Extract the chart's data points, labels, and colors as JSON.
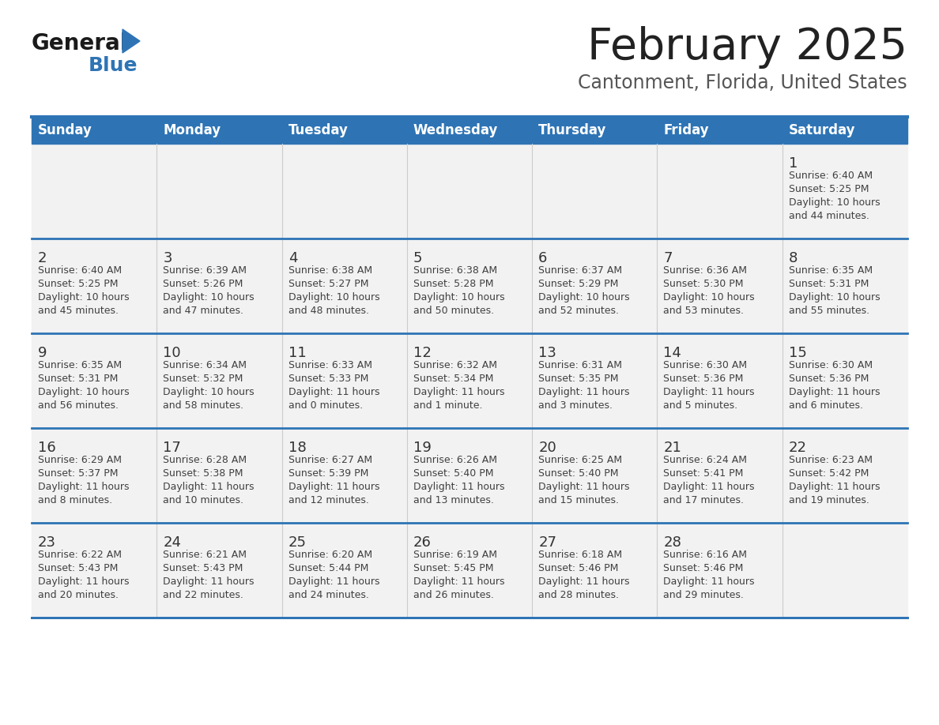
{
  "title": "February 2025",
  "subtitle": "Cantonment, Florida, United States",
  "days_of_week": [
    "Sunday",
    "Monday",
    "Tuesday",
    "Wednesday",
    "Thursday",
    "Friday",
    "Saturday"
  ],
  "header_bg": "#2E74B5",
  "header_text_color": "#FFFFFF",
  "cell_bg": "#F2F2F2",
  "separator_color": "#2E74B5",
  "col_sep_color": "#CCCCCC",
  "text_color": "#404040",
  "day_num_color": "#333333",
  "title_color": "#222222",
  "subtitle_color": "#555555",
  "logo_general_color": "#1a1a1a",
  "logo_blue_color": "#2E74B5",
  "weeks": [
    [
      {
        "day": null,
        "sunrise": null,
        "sunset": null,
        "daylight_line1": null,
        "daylight_line2": null
      },
      {
        "day": null,
        "sunrise": null,
        "sunset": null,
        "daylight_line1": null,
        "daylight_line2": null
      },
      {
        "day": null,
        "sunrise": null,
        "sunset": null,
        "daylight_line1": null,
        "daylight_line2": null
      },
      {
        "day": null,
        "sunrise": null,
        "sunset": null,
        "daylight_line1": null,
        "daylight_line2": null
      },
      {
        "day": null,
        "sunrise": null,
        "sunset": null,
        "daylight_line1": null,
        "daylight_line2": null
      },
      {
        "day": null,
        "sunrise": null,
        "sunset": null,
        "daylight_line1": null,
        "daylight_line2": null
      },
      {
        "day": 1,
        "sunrise": "Sunrise: 6:40 AM",
        "sunset": "Sunset: 5:25 PM",
        "daylight_line1": "Daylight: 10 hours",
        "daylight_line2": "and 44 minutes."
      }
    ],
    [
      {
        "day": 2,
        "sunrise": "Sunrise: 6:40 AM",
        "sunset": "Sunset: 5:25 PM",
        "daylight_line1": "Daylight: 10 hours",
        "daylight_line2": "and 45 minutes."
      },
      {
        "day": 3,
        "sunrise": "Sunrise: 6:39 AM",
        "sunset": "Sunset: 5:26 PM",
        "daylight_line1": "Daylight: 10 hours",
        "daylight_line2": "and 47 minutes."
      },
      {
        "day": 4,
        "sunrise": "Sunrise: 6:38 AM",
        "sunset": "Sunset: 5:27 PM",
        "daylight_line1": "Daylight: 10 hours",
        "daylight_line2": "and 48 minutes."
      },
      {
        "day": 5,
        "sunrise": "Sunrise: 6:38 AM",
        "sunset": "Sunset: 5:28 PM",
        "daylight_line1": "Daylight: 10 hours",
        "daylight_line2": "and 50 minutes."
      },
      {
        "day": 6,
        "sunrise": "Sunrise: 6:37 AM",
        "sunset": "Sunset: 5:29 PM",
        "daylight_line1": "Daylight: 10 hours",
        "daylight_line2": "and 52 minutes."
      },
      {
        "day": 7,
        "sunrise": "Sunrise: 6:36 AM",
        "sunset": "Sunset: 5:30 PM",
        "daylight_line1": "Daylight: 10 hours",
        "daylight_line2": "and 53 minutes."
      },
      {
        "day": 8,
        "sunrise": "Sunrise: 6:35 AM",
        "sunset": "Sunset: 5:31 PM",
        "daylight_line1": "Daylight: 10 hours",
        "daylight_line2": "and 55 minutes."
      }
    ],
    [
      {
        "day": 9,
        "sunrise": "Sunrise: 6:35 AM",
        "sunset": "Sunset: 5:31 PM",
        "daylight_line1": "Daylight: 10 hours",
        "daylight_line2": "and 56 minutes."
      },
      {
        "day": 10,
        "sunrise": "Sunrise: 6:34 AM",
        "sunset": "Sunset: 5:32 PM",
        "daylight_line1": "Daylight: 10 hours",
        "daylight_line2": "and 58 minutes."
      },
      {
        "day": 11,
        "sunrise": "Sunrise: 6:33 AM",
        "sunset": "Sunset: 5:33 PM",
        "daylight_line1": "Daylight: 11 hours",
        "daylight_line2": "and 0 minutes."
      },
      {
        "day": 12,
        "sunrise": "Sunrise: 6:32 AM",
        "sunset": "Sunset: 5:34 PM",
        "daylight_line1": "Daylight: 11 hours",
        "daylight_line2": "and 1 minute."
      },
      {
        "day": 13,
        "sunrise": "Sunrise: 6:31 AM",
        "sunset": "Sunset: 5:35 PM",
        "daylight_line1": "Daylight: 11 hours",
        "daylight_line2": "and 3 minutes."
      },
      {
        "day": 14,
        "sunrise": "Sunrise: 6:30 AM",
        "sunset": "Sunset: 5:36 PM",
        "daylight_line1": "Daylight: 11 hours",
        "daylight_line2": "and 5 minutes."
      },
      {
        "day": 15,
        "sunrise": "Sunrise: 6:30 AM",
        "sunset": "Sunset: 5:36 PM",
        "daylight_line1": "Daylight: 11 hours",
        "daylight_line2": "and 6 minutes."
      }
    ],
    [
      {
        "day": 16,
        "sunrise": "Sunrise: 6:29 AM",
        "sunset": "Sunset: 5:37 PM",
        "daylight_line1": "Daylight: 11 hours",
        "daylight_line2": "and 8 minutes."
      },
      {
        "day": 17,
        "sunrise": "Sunrise: 6:28 AM",
        "sunset": "Sunset: 5:38 PM",
        "daylight_line1": "Daylight: 11 hours",
        "daylight_line2": "and 10 minutes."
      },
      {
        "day": 18,
        "sunrise": "Sunrise: 6:27 AM",
        "sunset": "Sunset: 5:39 PM",
        "daylight_line1": "Daylight: 11 hours",
        "daylight_line2": "and 12 minutes."
      },
      {
        "day": 19,
        "sunrise": "Sunrise: 6:26 AM",
        "sunset": "Sunset: 5:40 PM",
        "daylight_line1": "Daylight: 11 hours",
        "daylight_line2": "and 13 minutes."
      },
      {
        "day": 20,
        "sunrise": "Sunrise: 6:25 AM",
        "sunset": "Sunset: 5:40 PM",
        "daylight_line1": "Daylight: 11 hours",
        "daylight_line2": "and 15 minutes."
      },
      {
        "day": 21,
        "sunrise": "Sunrise: 6:24 AM",
        "sunset": "Sunset: 5:41 PM",
        "daylight_line1": "Daylight: 11 hours",
        "daylight_line2": "and 17 minutes."
      },
      {
        "day": 22,
        "sunrise": "Sunrise: 6:23 AM",
        "sunset": "Sunset: 5:42 PM",
        "daylight_line1": "Daylight: 11 hours",
        "daylight_line2": "and 19 minutes."
      }
    ],
    [
      {
        "day": 23,
        "sunrise": "Sunrise: 6:22 AM",
        "sunset": "Sunset: 5:43 PM",
        "daylight_line1": "Daylight: 11 hours",
        "daylight_line2": "and 20 minutes."
      },
      {
        "day": 24,
        "sunrise": "Sunrise: 6:21 AM",
        "sunset": "Sunset: 5:43 PM",
        "daylight_line1": "Daylight: 11 hours",
        "daylight_line2": "and 22 minutes."
      },
      {
        "day": 25,
        "sunrise": "Sunrise: 6:20 AM",
        "sunset": "Sunset: 5:44 PM",
        "daylight_line1": "Daylight: 11 hours",
        "daylight_line2": "and 24 minutes."
      },
      {
        "day": 26,
        "sunrise": "Sunrise: 6:19 AM",
        "sunset": "Sunset: 5:45 PM",
        "daylight_line1": "Daylight: 11 hours",
        "daylight_line2": "and 26 minutes."
      },
      {
        "day": 27,
        "sunrise": "Sunrise: 6:18 AM",
        "sunset": "Sunset: 5:46 PM",
        "daylight_line1": "Daylight: 11 hours",
        "daylight_line2": "and 28 minutes."
      },
      {
        "day": 28,
        "sunrise": "Sunrise: 6:16 AM",
        "sunset": "Sunset: 5:46 PM",
        "daylight_line1": "Daylight: 11 hours",
        "daylight_line2": "and 29 minutes."
      },
      {
        "day": null,
        "sunrise": null,
        "sunset": null,
        "daylight_line1": null,
        "daylight_line2": null
      }
    ]
  ],
  "fig_width": 11.88,
  "fig_height": 9.18,
  "dpi": 100
}
